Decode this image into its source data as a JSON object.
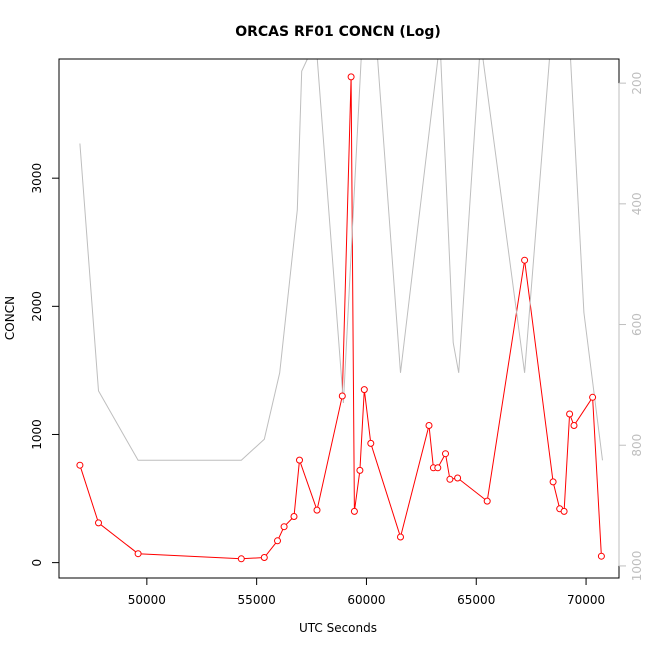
{
  "chart_data": {
    "type": "line",
    "title": "ORCAS RF01 CONCN (Log)",
    "xlabel": "UTC Seconds",
    "ylabel": "CONCN",
    "xlim": [
      46000,
      71500
    ],
    "ylim": [
      -120,
      3930
    ],
    "x_ticks": [
      50000,
      55000,
      60000,
      65000,
      70000
    ],
    "y_ticks": [
      0,
      1000,
      2000,
      3000
    ],
    "y2lim": [
      1020,
      160
    ],
    "y2_ticks": [
      200,
      400,
      600,
      800,
      1000
    ],
    "grid": false,
    "legend": "none",
    "colors": {
      "primary": "#ff0000",
      "secondary": "#bebebe",
      "axis": "#000000",
      "axis2": "#bebebe"
    },
    "series": [
      {
        "axis": "left",
        "marker": "circle",
        "x": [
          46950,
          47800,
          49600,
          54300,
          55350,
          55950,
          56250,
          56700,
          56950,
          57750,
          58900,
          59300,
          59450,
          59700,
          59900,
          60200,
          61550,
          62850,
          63050,
          63250,
          63600,
          63800,
          64150,
          65500,
          67200,
          68500,
          68800,
          69000,
          69250,
          69450,
          70300,
          70700
        ],
        "y": [
          760,
          310,
          70,
          30,
          40,
          170,
          280,
          360,
          800,
          410,
          1300,
          3790,
          400,
          720,
          1350,
          930,
          200,
          1070,
          740,
          740,
          850,
          650,
          660,
          480,
          2360,
          630,
          420,
          400,
          1160,
          1070,
          1290,
          50
        ]
      },
      {
        "axis": "right",
        "marker": "none",
        "x": [
          46950,
          47800,
          49600,
          54300,
          55350,
          56050,
          56850,
          57050,
          57700,
          58950,
          59800,
          60450,
          61550,
          63350,
          63950,
          64200,
          65200,
          67200,
          68400,
          69250,
          69900,
          70750
        ],
        "y": [
          300,
          710,
          825,
          825,
          790,
          680,
          410,
          180,
          130,
          730,
          130,
          130,
          680,
          130,
          630,
          680,
          130,
          680,
          130,
          130,
          580,
          825
        ]
      }
    ]
  }
}
